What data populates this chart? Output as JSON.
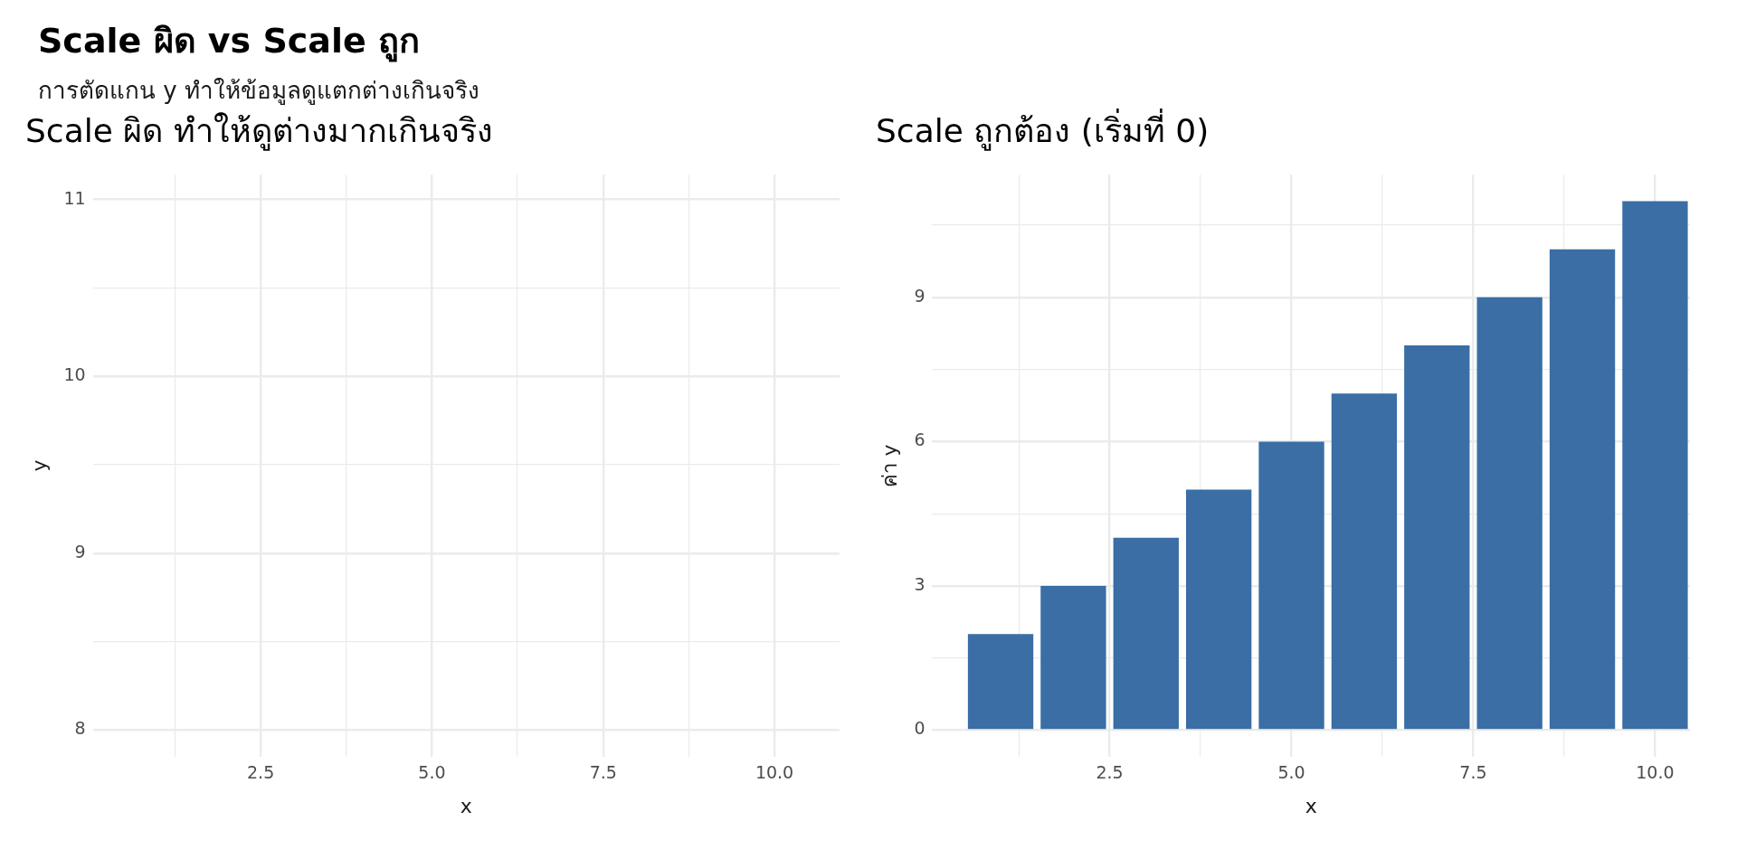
{
  "chart_data": [
    {
      "type": "other",
      "title": "Scale ผิด vs Scale ถูก",
      "subtitle": "การตัดแกน y ทำให้ข้อมูลดูแตกต่างเกินจริง"
    },
    {
      "type": "bar",
      "title": "Scale ผิด ทำให้ดูต่างมากเกินจริง",
      "xlabel": "x",
      "ylabel": "y",
      "xlim": [
        0.05,
        10.95
      ],
      "ylim": [
        7.85,
        11.14
      ],
      "xticks": [
        {
          "value": 1.25,
          "label": null
        },
        {
          "value": 2.5,
          "label": "2.5"
        },
        {
          "value": 3.75,
          "label": null
        },
        {
          "value": 5,
          "label": "5.0"
        },
        {
          "value": 6.25,
          "label": null
        },
        {
          "value": 7.5,
          "label": "7.5"
        },
        {
          "value": 8.75,
          "label": null
        },
        {
          "value": 10,
          "label": "10.0"
        }
      ],
      "yticks": [
        8,
        {
          "value": 8.5,
          "label": null
        },
        9,
        {
          "value": 9.5,
          "label": null
        },
        10,
        {
          "value": 10.5,
          "label": null
        },
        11
      ],
      "grid": true
    },
    {
      "type": "bar",
      "title": "Scale ถูกต้อง (เริ่มที่ 0)",
      "xlabel": "x",
      "ylabel": "ค่า y",
      "xlim": [
        0.06,
        10.48
      ],
      "ylim": [
        -0.55,
        11.55
      ],
      "xticks": [
        {
          "value": 1.25,
          "label": null
        },
        {
          "value": 2.5,
          "label": "2.5"
        },
        {
          "value": 3.75,
          "label": null
        },
        {
          "value": 5,
          "label": "5.0"
        },
        {
          "value": 6.25,
          "label": null
        },
        {
          "value": 7.5,
          "label": "7.5"
        },
        {
          "value": 8.75,
          "label": null
        },
        {
          "value": 10,
          "label": "10.0"
        }
      ],
      "yticks": [
        0,
        {
          "value": 1.5,
          "label": null
        },
        3,
        {
          "value": 4.5,
          "label": null
        },
        6,
        {
          "value": 7.5,
          "label": null
        },
        9,
        {
          "value": 10.5,
          "label": null
        }
      ],
      "grid": true,
      "x": [
        1,
        2,
        3,
        4,
        5,
        6,
        7,
        8,
        9,
        10
      ],
      "values": [
        2,
        3,
        4,
        5,
        6,
        7,
        8,
        9,
        10,
        11
      ],
      "color": "#3a6ea5"
    }
  ]
}
